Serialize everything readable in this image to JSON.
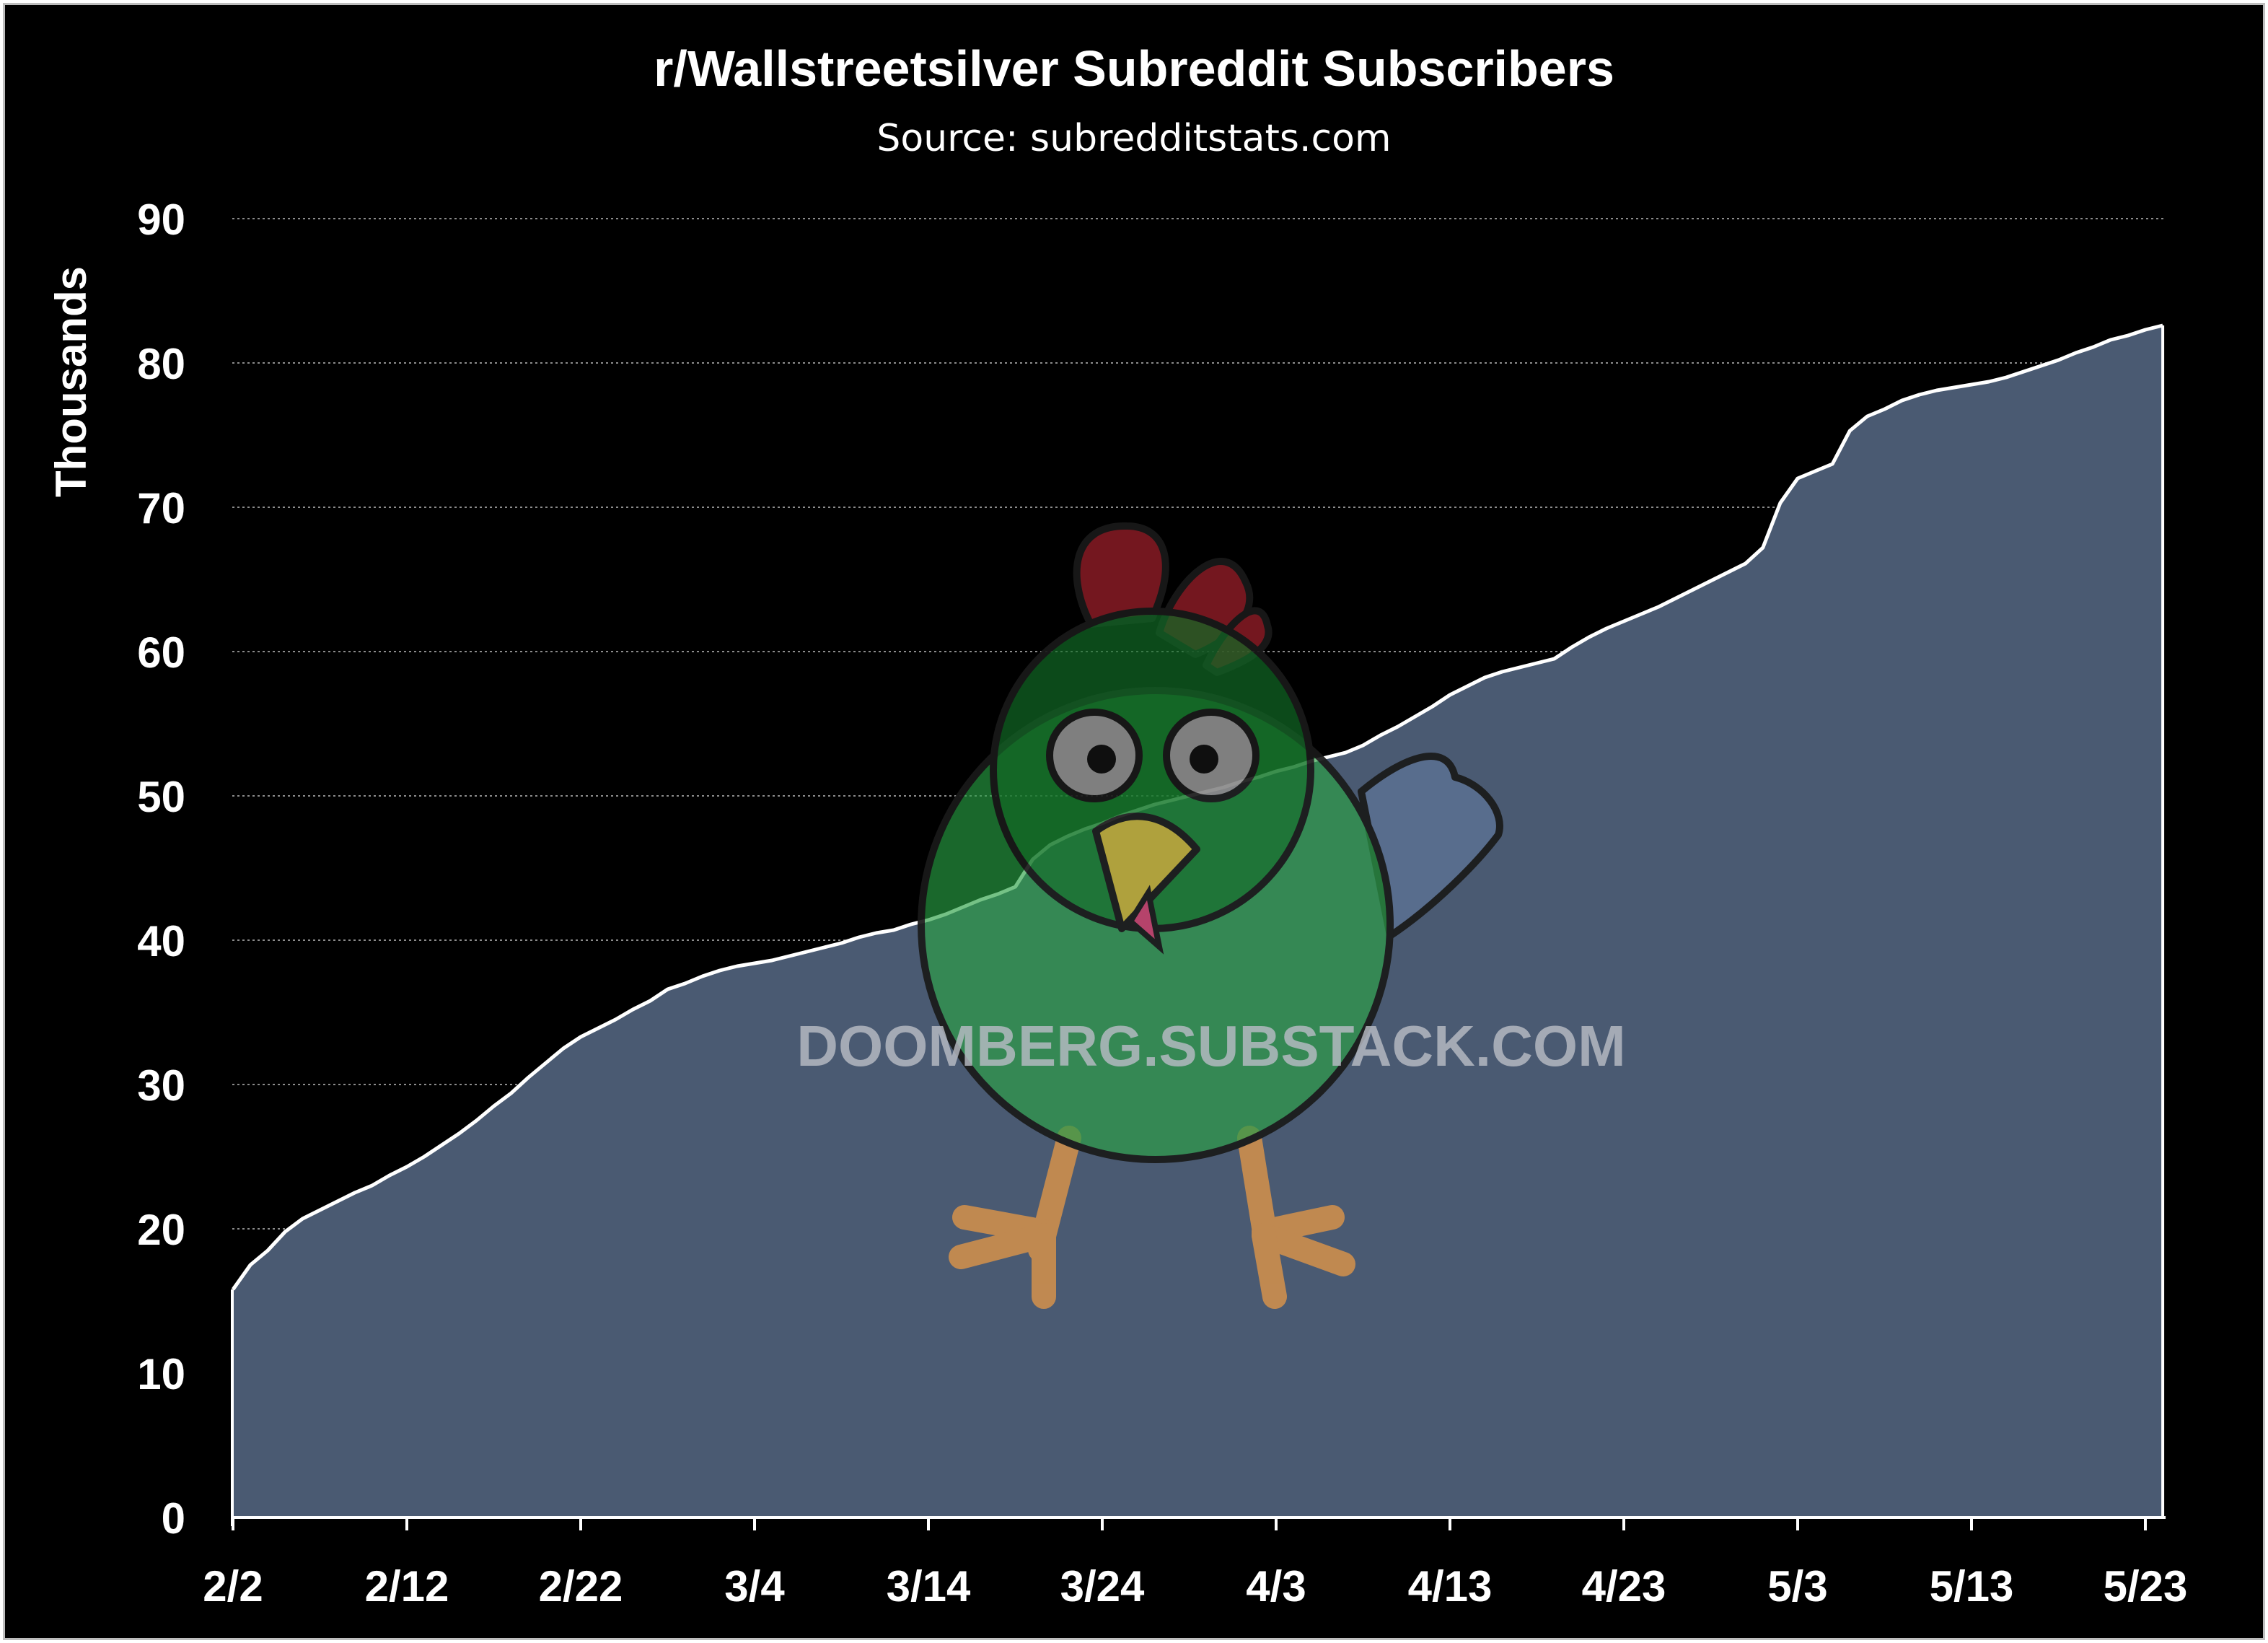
{
  "chart_data": {
    "type": "area",
    "title": "r/Wallstreetsilver Subreddit Subscribers",
    "subtitle": "Source: subredditstats.com",
    "ylabel": "Thousands",
    "xlabel": "",
    "ylim": [
      0,
      90
    ],
    "yticks": [
      0,
      10,
      20,
      30,
      40,
      50,
      60,
      70,
      80,
      90
    ],
    "xticks": [
      "2/2",
      "2/12",
      "2/22",
      "3/4",
      "3/14",
      "3/24",
      "4/3",
      "4/13",
      "4/23",
      "5/3",
      "5/13",
      "5/23"
    ],
    "grid": true,
    "legend": "none",
    "series": [
      {
        "x": [
          "2/2",
          "2/3",
          "2/4",
          "2/5",
          "2/6",
          "2/7",
          "2/8",
          "2/9",
          "2/10",
          "2/11",
          "2/12",
          "2/13",
          "2/14",
          "2/15",
          "2/16",
          "2/17",
          "2/18",
          "2/19",
          "2/20",
          "2/21",
          "2/22",
          "2/23",
          "2/24",
          "2/25",
          "2/26",
          "2/27",
          "2/28",
          "3/1",
          "3/2",
          "3/3",
          "3/4",
          "3/5",
          "3/6",
          "3/7",
          "3/8",
          "3/9",
          "3/10",
          "3/11",
          "3/12",
          "3/13",
          "3/14",
          "3/15",
          "3/16",
          "3/17",
          "3/18",
          "3/19",
          "3/20",
          "3/21",
          "3/22",
          "3/23",
          "3/24",
          "3/25",
          "3/26",
          "3/27",
          "3/28",
          "3/29",
          "3/30",
          "3/31",
          "4/1",
          "4/2",
          "4/3",
          "4/4",
          "4/5",
          "4/6",
          "4/7",
          "4/8",
          "4/9",
          "4/10",
          "4/11",
          "4/12",
          "4/13",
          "4/14",
          "4/15",
          "4/16",
          "4/17",
          "4/18",
          "4/19",
          "4/20",
          "4/21",
          "4/22",
          "4/23",
          "4/24",
          "4/25",
          "4/26",
          "4/27",
          "4/28",
          "4/29",
          "4/30",
          "5/1",
          "5/2",
          "5/3",
          "5/4",
          "5/5",
          "5/6",
          "5/7",
          "5/8",
          "5/9",
          "5/10",
          "5/11",
          "5/12",
          "5/13",
          "5/14",
          "5/15",
          "5/16",
          "5/17",
          "5/18",
          "5/19",
          "5/20",
          "5/21",
          "5/22",
          "5/23",
          "5/24"
        ],
        "values": [
          15.8,
          17.5,
          18.5,
          19.8,
          20.7,
          21.3,
          21.9,
          22.5,
          23.0,
          23.7,
          24.3,
          25.0,
          25.8,
          26.6,
          27.5,
          28.5,
          29.4,
          30.5,
          31.5,
          32.5,
          33.3,
          33.9,
          34.5,
          35.2,
          35.8,
          36.6,
          37.0,
          37.5,
          37.9,
          38.2,
          38.4,
          38.6,
          38.9,
          39.2,
          39.5,
          39.8,
          40.2,
          40.5,
          40.7,
          41.1,
          41.4,
          41.8,
          42.3,
          42.8,
          43.2,
          43.7,
          45.6,
          46.6,
          47.2,
          47.7,
          48.1,
          48.6,
          49.0,
          49.4,
          49.7,
          50.0,
          50.3,
          50.6,
          51.0,
          51.3,
          51.7,
          52.0,
          52.4,
          52.7,
          53.0,
          53.5,
          54.2,
          54.8,
          55.5,
          56.2,
          57.0,
          57.6,
          58.2,
          58.6,
          58.9,
          59.2,
          59.5,
          60.3,
          61.0,
          61.6,
          62.1,
          62.6,
          63.1,
          63.7,
          64.3,
          64.9,
          65.5,
          66.1,
          67.2,
          70.3,
          72.0,
          72.5,
          73.0,
          75.3,
          76.3,
          76.8,
          77.4,
          77.8,
          78.1,
          78.3,
          78.5,
          78.7,
          79.0,
          79.4,
          79.8,
          80.2,
          80.7,
          81.1,
          81.6,
          81.9,
          82.3,
          82.6
        ]
      }
    ],
    "colors": {
      "area": "#4a5a72",
      "line": "#ffffff",
      "background": "#000000",
      "grid": "#8c8c8c"
    },
    "watermark": "DOOMBERG.SUBSTACK.COM"
  }
}
